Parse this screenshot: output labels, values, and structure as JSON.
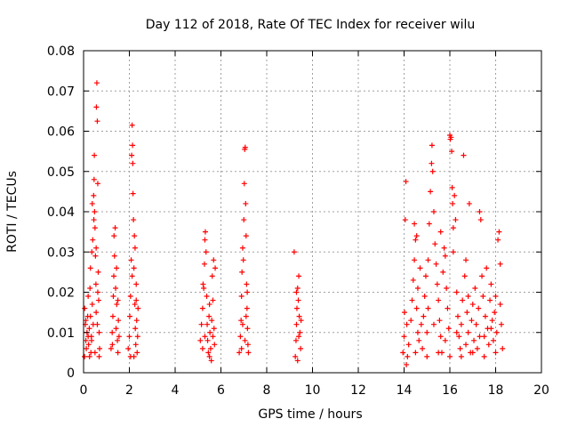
{
  "chart_data": {
    "type": "scatter",
    "title": "Day 112 of 2018, Rate Of TEC Index for receiver wilu",
    "xlabel": "GPS time / hours",
    "ylabel": "ROTI / TECUs",
    "xlim": [
      0,
      20
    ],
    "ylim": [
      0,
      0.08
    ],
    "xticks": [
      0,
      2,
      4,
      6,
      8,
      10,
      12,
      14,
      16,
      18,
      20
    ],
    "xtick_labels": [
      "0",
      "2",
      "4",
      "6",
      "8",
      "10",
      "12",
      "14",
      "16",
      "18",
      "20"
    ],
    "yticks": [
      0,
      0.01,
      0.02,
      0.03,
      0.04,
      0.05,
      0.06,
      0.07,
      0.08
    ],
    "ytick_labels": [
      "0",
      "0.01",
      "0.02",
      "0.03",
      "0.04",
      "0.05",
      "0.06",
      "0.07",
      "0.08"
    ],
    "grid": true,
    "marker": "+",
    "color": "#ff0000",
    "series": [
      {
        "name": "ROTI",
        "points": [
          [
            0.05,
            0.016
          ],
          [
            0.08,
            0.012
          ],
          [
            0.1,
            0.008
          ],
          [
            0.12,
            0.006
          ],
          [
            0.15,
            0.01
          ],
          [
            0.18,
            0.014
          ],
          [
            0.2,
            0.019
          ],
          [
            0.22,
            0.007
          ],
          [
            0.25,
            0.011
          ],
          [
            0.28,
            0.021
          ],
          [
            0.3,
            0.026
          ],
          [
            0.32,
            0.005
          ],
          [
            0.34,
            0.009
          ],
          [
            0.36,
            0.03
          ],
          [
            0.38,
            0.017
          ],
          [
            0.4,
            0.033
          ],
          [
            0.42,
            0.012
          ],
          [
            0.44,
            0.044
          ],
          [
            0.46,
            0.048
          ],
          [
            0.47,
            0.054
          ],
          [
            0.48,
            0.04
          ],
          [
            0.5,
            0.036
          ],
          [
            0.52,
            0.029
          ],
          [
            0.54,
            0.022
          ],
          [
            0.55,
            0.015
          ],
          [
            0.56,
            0.066
          ],
          [
            0.58,
            0.072
          ],
          [
            0.6,
            0.0625
          ],
          [
            0.62,
            0.047
          ],
          [
            0.64,
            0.025
          ],
          [
            0.66,
            0.018
          ],
          [
            0.68,
            0.01
          ],
          [
            0.7,
            0.006
          ],
          [
            0.04,
            0.004
          ],
          [
            0.26,
            0.004
          ],
          [
            0.5,
            0.005
          ],
          [
            0.68,
            0.004
          ],
          [
            0.1,
            0.013
          ],
          [
            0.35,
            0.008
          ],
          [
            0.6,
            0.012
          ],
          [
            0.45,
            0.038
          ],
          [
            0.38,
            0.042
          ],
          [
            0.55,
            0.031
          ],
          [
            0.62,
            0.02
          ],
          [
            0.2,
            0.009
          ],
          [
            0.3,
            0.014
          ],
          [
            1.2,
            0.006
          ],
          [
            1.25,
            0.01
          ],
          [
            1.28,
            0.014
          ],
          [
            1.3,
            0.019
          ],
          [
            1.32,
            0.024
          ],
          [
            1.35,
            0.029
          ],
          [
            1.38,
            0.036
          ],
          [
            1.4,
            0.021
          ],
          [
            1.42,
            0.011
          ],
          [
            1.45,
            0.017
          ],
          [
            1.48,
            0.008
          ],
          [
            1.5,
            0.005
          ],
          [
            1.52,
            0.013
          ],
          [
            1.55,
            0.009
          ],
          [
            1.33,
            0.034
          ],
          [
            1.44,
            0.026
          ],
          [
            1.26,
            0.007
          ],
          [
            1.5,
            0.018
          ],
          [
            1.95,
            0.006
          ],
          [
            2.0,
            0.009
          ],
          [
            2.02,
            0.014
          ],
          [
            2.05,
            0.019
          ],
          [
            2.08,
            0.028
          ],
          [
            2.1,
            0.054
          ],
          [
            2.12,
            0.0615
          ],
          [
            2.14,
            0.0565
          ],
          [
            2.16,
            0.0445
          ],
          [
            2.18,
            0.038
          ],
          [
            2.2,
            0.026
          ],
          [
            2.22,
            0.034
          ],
          [
            2.24,
            0.017
          ],
          [
            2.26,
            0.011
          ],
          [
            2.28,
            0.007
          ],
          [
            2.3,
            0.022
          ],
          [
            2.32,
            0.013
          ],
          [
            2.34,
            0.005
          ],
          [
            2.36,
            0.009
          ],
          [
            2.38,
            0.016
          ],
          [
            2.25,
            0.031
          ],
          [
            2.12,
            0.024
          ],
          [
            2.05,
            0.004
          ],
          [
            2.2,
            0.004
          ],
          [
            2.15,
            0.052
          ],
          [
            2.3,
            0.018
          ],
          [
            5.1,
            0.008
          ],
          [
            5.15,
            0.012
          ],
          [
            5.2,
            0.016
          ],
          [
            5.22,
            0.022
          ],
          [
            5.25,
            0.021
          ],
          [
            5.28,
            0.027
          ],
          [
            5.3,
            0.033
          ],
          [
            5.32,
            0.035
          ],
          [
            5.35,
            0.03
          ],
          [
            5.38,
            0.019
          ],
          [
            5.4,
            0.012
          ],
          [
            5.42,
            0.008
          ],
          [
            5.45,
            0.005
          ],
          [
            5.48,
            0.014
          ],
          [
            5.5,
            0.004
          ],
          [
            5.52,
            0.01
          ],
          [
            5.55,
            0.006
          ],
          [
            5.58,
            0.003
          ],
          [
            5.6,
            0.013
          ],
          [
            5.62,
            0.024
          ],
          [
            5.65,
            0.018
          ],
          [
            5.68,
            0.028
          ],
          [
            5.7,
            0.011
          ],
          [
            5.72,
            0.007
          ],
          [
            5.75,
            0.026
          ],
          [
            5.3,
            0.009
          ],
          [
            5.5,
            0.017
          ],
          [
            5.2,
            0.006
          ],
          [
            5.65,
            0.009
          ],
          [
            6.8,
            0.005
          ],
          [
            6.85,
            0.009
          ],
          [
            6.88,
            0.013
          ],
          [
            6.9,
            0.019
          ],
          [
            6.92,
            0.025
          ],
          [
            6.95,
            0.031
          ],
          [
            6.98,
            0.028
          ],
          [
            7.0,
            0.038
          ],
          [
            7.02,
            0.047
          ],
          [
            7.04,
            0.0555
          ],
          [
            7.06,
            0.056
          ],
          [
            7.08,
            0.042
          ],
          [
            7.1,
            0.034
          ],
          [
            7.12,
            0.022
          ],
          [
            7.14,
            0.016
          ],
          [
            7.16,
            0.011
          ],
          [
            7.18,
            0.007
          ],
          [
            7.2,
            0.005
          ],
          [
            6.95,
            0.012
          ],
          [
            7.05,
            0.008
          ],
          [
            7.15,
            0.02
          ],
          [
            6.9,
            0.006
          ],
          [
            7.1,
            0.014
          ],
          [
            9.2,
            0.03
          ],
          [
            9.25,
            0.004
          ],
          [
            9.28,
            0.008
          ],
          [
            9.3,
            0.012
          ],
          [
            9.32,
            0.016
          ],
          [
            9.35,
            0.021
          ],
          [
            9.38,
            0.018
          ],
          [
            9.4,
            0.024
          ],
          [
            9.42,
            0.014
          ],
          [
            9.45,
            0.01
          ],
          [
            9.48,
            0.006
          ],
          [
            9.5,
            0.013
          ],
          [
            9.35,
            0.003
          ],
          [
            9.4,
            0.009
          ],
          [
            9.3,
            0.02
          ],
          [
            13.95,
            0.005
          ],
          [
            14.0,
            0.009
          ],
          [
            14.02,
            0.015
          ],
          [
            14.05,
            0.038
          ],
          [
            14.08,
            0.0475
          ],
          [
            14.1,
            0.002
          ],
          [
            14.12,
            0.012
          ],
          [
            14.15,
            0.004
          ],
          [
            14.2,
            0.007
          ],
          [
            14.3,
            0.013
          ],
          [
            14.35,
            0.018
          ],
          [
            14.4,
            0.023
          ],
          [
            14.45,
            0.028
          ],
          [
            14.5,
            0.033
          ],
          [
            14.55,
            0.016
          ],
          [
            14.6,
            0.021
          ],
          [
            14.65,
            0.008
          ],
          [
            14.7,
            0.026
          ],
          [
            14.75,
            0.012
          ],
          [
            14.8,
            0.006
          ],
          [
            14.85,
            0.014
          ],
          [
            14.9,
            0.019
          ],
          [
            14.95,
            0.024
          ],
          [
            15.0,
            0.01
          ],
          [
            15.05,
            0.016
          ],
          [
            15.1,
            0.037
          ],
          [
            15.15,
            0.045
          ],
          [
            15.2,
            0.052
          ],
          [
            15.22,
            0.0565
          ],
          [
            15.25,
            0.05
          ],
          [
            15.3,
            0.04
          ],
          [
            15.35,
            0.032
          ],
          [
            15.4,
            0.027
          ],
          [
            15.45,
            0.022
          ],
          [
            15.5,
            0.018
          ],
          [
            15.55,
            0.013
          ],
          [
            15.6,
            0.009
          ],
          [
            15.65,
            0.005
          ],
          [
            15.7,
            0.025
          ],
          [
            15.75,
            0.031
          ],
          [
            15.8,
            0.029
          ],
          [
            15.85,
            0.021
          ],
          [
            15.9,
            0.016
          ],
          [
            15.95,
            0.011
          ],
          [
            16.0,
            0.059
          ],
          [
            16.02,
            0.058
          ],
          [
            16.05,
            0.0585
          ],
          [
            16.08,
            0.055
          ],
          [
            16.1,
            0.046
          ],
          [
            16.12,
            0.042
          ],
          [
            16.15,
            0.036
          ],
          [
            16.2,
            0.044
          ],
          [
            16.25,
            0.038
          ],
          [
            16.3,
            0.02
          ],
          [
            16.35,
            0.014
          ],
          [
            16.4,
            0.009
          ],
          [
            16.45,
            0.006
          ],
          [
            16.5,
            0.012
          ],
          [
            16.55,
            0.018
          ],
          [
            16.6,
            0.054
          ],
          [
            16.65,
            0.024
          ],
          [
            16.7,
            0.007
          ],
          [
            16.75,
            0.015
          ],
          [
            16.8,
            0.01
          ],
          [
            16.85,
            0.042
          ],
          [
            16.9,
            0.005
          ],
          [
            16.95,
            0.013
          ],
          [
            17.0,
            0.017
          ],
          [
            17.05,
            0.008
          ],
          [
            17.1,
            0.021
          ],
          [
            17.15,
            0.012
          ],
          [
            17.2,
            0.006
          ],
          [
            17.25,
            0.016
          ],
          [
            17.3,
            0.04
          ],
          [
            17.35,
            0.038
          ],
          [
            17.4,
            0.024
          ],
          [
            17.45,
            0.019
          ],
          [
            17.5,
            0.009
          ],
          [
            17.55,
            0.014
          ],
          [
            17.6,
            0.026
          ],
          [
            17.65,
            0.011
          ],
          [
            17.7,
            0.007
          ],
          [
            17.75,
            0.018
          ],
          [
            17.8,
            0.022
          ],
          [
            17.85,
            0.013
          ],
          [
            17.9,
            0.008
          ],
          [
            17.95,
            0.015
          ],
          [
            18.0,
            0.019
          ],
          [
            18.05,
            0.01
          ],
          [
            18.1,
            0.033
          ],
          [
            18.15,
            0.035
          ],
          [
            18.2,
            0.027
          ],
          [
            18.25,
            0.012
          ],
          [
            18.3,
            0.006
          ],
          [
            14.5,
            0.005
          ],
          [
            15.0,
            0.004
          ],
          [
            15.5,
            0.005
          ],
          [
            16.0,
            0.004
          ],
          [
            16.5,
            0.004
          ],
          [
            17.0,
            0.005
          ],
          [
            17.5,
            0.004
          ],
          [
            18.0,
            0.005
          ],
          [
            14.6,
            0.01
          ],
          [
            15.3,
            0.012
          ],
          [
            15.8,
            0.008
          ],
          [
            16.3,
            0.01
          ],
          [
            16.8,
            0.019
          ],
          [
            17.3,
            0.009
          ],
          [
            17.8,
            0.011
          ],
          [
            18.2,
            0.017
          ],
          [
            14.45,
            0.037
          ],
          [
            14.55,
            0.034
          ],
          [
            15.05,
            0.028
          ],
          [
            15.6,
            0.035
          ],
          [
            16.15,
            0.03
          ],
          [
            16.7,
            0.028
          ]
        ]
      }
    ]
  }
}
